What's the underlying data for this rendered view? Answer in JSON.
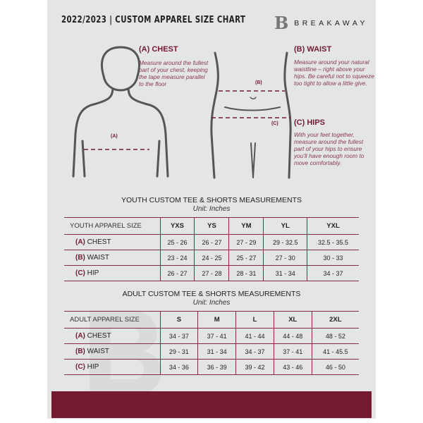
{
  "header": {
    "title": "2022/2023  |  CUSTOM APPAREL SIZE CHART",
    "brand": "BREAKAWAY",
    "logo_letter": "B"
  },
  "guide": {
    "chest": {
      "title": "(A) CHEST",
      "desc": "Measure around the fullest part of your chest, keeping the tape measure parallel to the floor",
      "marker": "(A)"
    },
    "waist": {
      "title": "(B) WAIST",
      "desc": "Measure around your natural waistline – right above your hips. Be careful not to squeeze too tight to allow a little give.",
      "marker": "(B)"
    },
    "hips": {
      "title": "(C) HIPS",
      "desc": "With your feet together, measure around the fullest part of your hips to ensure you'll have enough room to move comfortably.",
      "marker": "(C)"
    }
  },
  "youth": {
    "heading": "YOUTH CUSTOM TEE & SHORTS MEASUREMENTS",
    "unit": "Unit: Inches",
    "header": [
      "YOUTH APPAREL SIZE",
      "YXS",
      "YS",
      "YM",
      "YL",
      "YXL"
    ],
    "rows": [
      {
        "letter": "(A)",
        "label": "CHEST",
        "values": [
          "25 - 26",
          "26 - 27",
          "27 - 29",
          "29 - 32.5",
          "32.5 - 35.5"
        ]
      },
      {
        "letter": "(B)",
        "label": "WAIST",
        "values": [
          "23 - 24",
          "24 - 25",
          "25 - 27",
          "27 - 30",
          "30 - 33"
        ]
      },
      {
        "letter": "(C)",
        "label": "HIP",
        "values": [
          "26 - 27",
          "27 - 28",
          "28 - 31",
          "31 - 34",
          "34 - 37"
        ]
      }
    ]
  },
  "adult": {
    "heading": "ADULT CUSTOM TEE & SHORTS MEASUREMENTS",
    "unit": "Unit: Inches",
    "header": [
      "ADULT APPAREL SIZE",
      "S",
      "M",
      "L",
      "XL",
      "2XL"
    ],
    "rows": [
      {
        "letter": "(A)",
        "label": "CHEST",
        "values": [
          "34 - 37",
          "37 - 41",
          "41 - 44",
          "44 - 48",
          "48 - 52"
        ]
      },
      {
        "letter": "(B)",
        "label": "WAIST",
        "values": [
          "29 - 31",
          "31 - 34",
          "34 - 37",
          "37 - 41",
          "41 - 45.5"
        ]
      },
      {
        "letter": "(C)",
        "label": "HIP",
        "values": [
          "34 - 36",
          "36 - 39",
          "39 - 42",
          "43 - 46",
          "46 - 50"
        ]
      }
    ]
  },
  "colors": {
    "accent": "#741b30",
    "background": "#e4e5e7"
  }
}
